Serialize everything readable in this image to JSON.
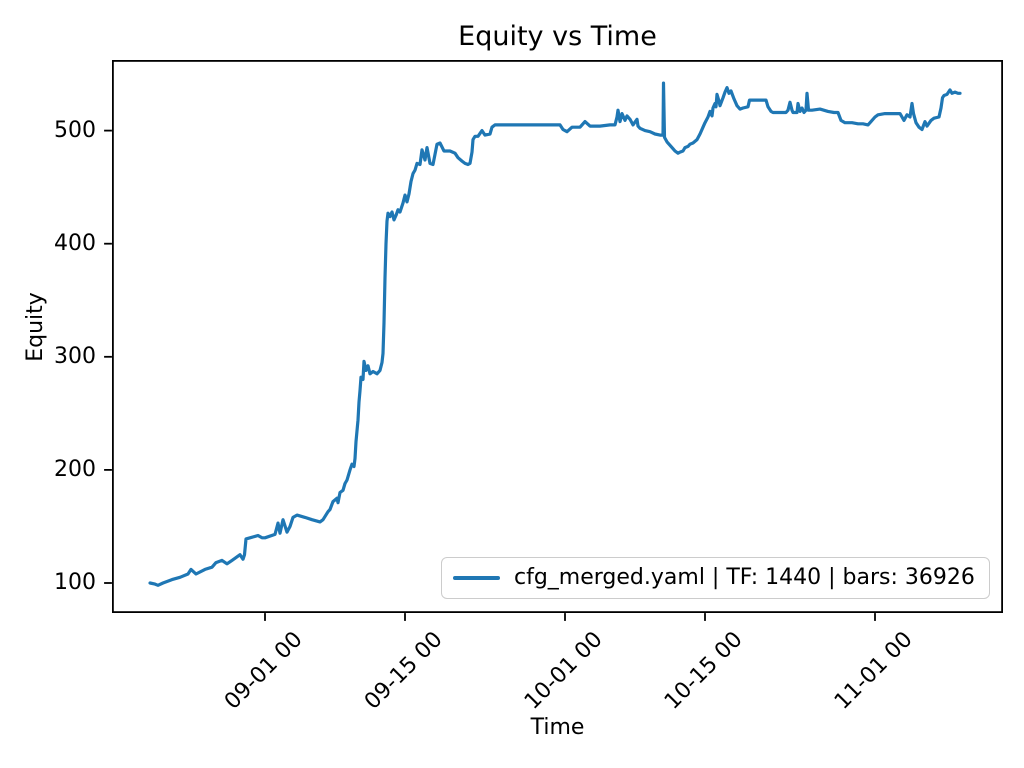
{
  "figure": {
    "title": "Equity vs Time",
    "xlabel": "Time",
    "ylabel": "Equity"
  },
  "legend": {
    "label": "cfg_merged.yaml | TF: 1440 | bars: 36926",
    "line_color": "#1f77b4"
  },
  "chart_data": {
    "type": "line",
    "title": "Equity vs Time",
    "xlabel": "Time",
    "ylabel": "Equity",
    "grid": false,
    "legend_entries": [
      "cfg_merged.yaml | TF: 1440 | bars: 36926"
    ],
    "legend_position": "lower right",
    "line_color": "#1f77b4",
    "axis_color": "#000000",
    "x_unit": "days relative to 09-01 00:00",
    "xlim": [
      -15.3,
      73.8
    ],
    "ylim": [
      74,
      563
    ],
    "yticks": [
      100,
      200,
      300,
      400,
      500
    ],
    "xticks": [
      {
        "t": 0,
        "label": "09-01 00"
      },
      {
        "t": 14,
        "label": "09-15 00"
      },
      {
        "t": 30,
        "label": "10-01 00"
      },
      {
        "t": 44,
        "label": "10-15 00"
      },
      {
        "t": 61,
        "label": "11-01 00"
      }
    ],
    "series": [
      {
        "name": "cfg_merged.yaml | TF: 1440 | bars: 36926",
        "points": [
          [
            -11.5,
            100
          ],
          [
            -11.0,
            99
          ],
          [
            -10.7,
            98
          ],
          [
            -10.2,
            100
          ],
          [
            -9.3,
            103
          ],
          [
            -8.5,
            105
          ],
          [
            -7.7,
            108
          ],
          [
            -7.4,
            112
          ],
          [
            -6.9,
            108
          ],
          [
            -6.0,
            112
          ],
          [
            -5.3,
            114
          ],
          [
            -4.9,
            118
          ],
          [
            -4.3,
            120
          ],
          [
            -3.8,
            117
          ],
          [
            -3.3,
            120
          ],
          [
            -2.5,
            125
          ],
          [
            -2.2,
            121
          ],
          [
            -2.05,
            125
          ],
          [
            -1.9,
            139
          ],
          [
            -1.5,
            140
          ],
          [
            -0.7,
            142
          ],
          [
            -0.3,
            140
          ],
          [
            0,
            140
          ],
          [
            1.0,
            143
          ],
          [
            1.3,
            153
          ],
          [
            1.5,
            144
          ],
          [
            1.8,
            156
          ],
          [
            2.2,
            145
          ],
          [
            2.5,
            150
          ],
          [
            2.8,
            158
          ],
          [
            3.2,
            160
          ],
          [
            4.0,
            158
          ],
          [
            4.7,
            156
          ],
          [
            5.5,
            154
          ],
          [
            5.8,
            156
          ],
          [
            6.3,
            163
          ],
          [
            6.5,
            165
          ],
          [
            6.8,
            172
          ],
          [
            7.2,
            175
          ],
          [
            7.3,
            171
          ],
          [
            7.5,
            180
          ],
          [
            7.8,
            182
          ],
          [
            8.0,
            188
          ],
          [
            8.2,
            191
          ],
          [
            8.5,
            200
          ],
          [
            8.7,
            205
          ],
          [
            8.9,
            203
          ],
          [
            9.0,
            210
          ],
          [
            9.1,
            225
          ],
          [
            9.3,
            244
          ],
          [
            9.4,
            260
          ],
          [
            9.5,
            270
          ],
          [
            9.6,
            282
          ],
          [
            9.8,
            280
          ],
          [
            9.9,
            296
          ],
          [
            10.1,
            288
          ],
          [
            10.3,
            292
          ],
          [
            10.5,
            285
          ],
          [
            10.8,
            287
          ],
          [
            11.2,
            285
          ],
          [
            11.5,
            288
          ],
          [
            11.7,
            295
          ],
          [
            11.8,
            303
          ],
          [
            11.9,
            330
          ],
          [
            12.0,
            370
          ],
          [
            12.1,
            400
          ],
          [
            12.2,
            420
          ],
          [
            12.3,
            427
          ],
          [
            12.5,
            424
          ],
          [
            12.7,
            428
          ],
          [
            12.9,
            421
          ],
          [
            13.1,
            425
          ],
          [
            13.3,
            430
          ],
          [
            13.5,
            428
          ],
          [
            13.8,
            436
          ],
          [
            14.0,
            443
          ],
          [
            14.2,
            437
          ],
          [
            14.4,
            444
          ],
          [
            14.6,
            455
          ],
          [
            14.8,
            462
          ],
          [
            15.0,
            465
          ],
          [
            15.2,
            471
          ],
          [
            15.5,
            470
          ],
          [
            15.7,
            483
          ],
          [
            16.0,
            474
          ],
          [
            16.2,
            485
          ],
          [
            16.5,
            471
          ],
          [
            16.8,
            470
          ],
          [
            17.2,
            488
          ],
          [
            17.5,
            489
          ],
          [
            17.9,
            482
          ],
          [
            18.5,
            482
          ],
          [
            19.0,
            480
          ],
          [
            19.3,
            476
          ],
          [
            19.7,
            473
          ],
          [
            20.0,
            471
          ],
          [
            20.3,
            470
          ],
          [
            20.5,
            471
          ],
          [
            20.7,
            481
          ],
          [
            20.8,
            492
          ],
          [
            21.0,
            495
          ],
          [
            21.3,
            495
          ],
          [
            21.7,
            500
          ],
          [
            22.0,
            496
          ],
          [
            22.5,
            497
          ],
          [
            22.7,
            503
          ],
          [
            23.0,
            505
          ],
          [
            23.5,
            505
          ],
          [
            25.0,
            505
          ],
          [
            27.0,
            505
          ],
          [
            29.5,
            505
          ],
          [
            29.8,
            501
          ],
          [
            30.2,
            499
          ],
          [
            30.7,
            503
          ],
          [
            31.5,
            503
          ],
          [
            32.0,
            508
          ],
          [
            32.5,
            504
          ],
          [
            33.5,
            504
          ],
          [
            34.5,
            505
          ],
          [
            35.0,
            505
          ],
          [
            35.2,
            512
          ],
          [
            35.3,
            518
          ],
          [
            35.5,
            508
          ],
          [
            35.7,
            515
          ],
          [
            36.0,
            509
          ],
          [
            36.2,
            513
          ],
          [
            36.5,
            510
          ],
          [
            36.8,
            505
          ],
          [
            37.2,
            510
          ],
          [
            37.3,
            504
          ],
          [
            37.5,
            502
          ],
          [
            38.0,
            500
          ],
          [
            38.5,
            499
          ],
          [
            39.0,
            497
          ],
          [
            39.5,
            496
          ],
          [
            39.8,
            496
          ],
          [
            39.85,
            542
          ],
          [
            39.95,
            494
          ],
          [
            40.2,
            490
          ],
          [
            40.5,
            487
          ],
          [
            40.8,
            484
          ],
          [
            41.0,
            482
          ],
          [
            41.3,
            480
          ],
          [
            41.5,
            481
          ],
          [
            41.8,
            482
          ],
          [
            42.0,
            485
          ],
          [
            42.3,
            486
          ],
          [
            42.5,
            488
          ],
          [
            42.8,
            489
          ],
          [
            43.2,
            492
          ],
          [
            43.5,
            497
          ],
          [
            43.8,
            503
          ],
          [
            44.0,
            507
          ],
          [
            44.3,
            512
          ],
          [
            44.5,
            517
          ],
          [
            44.7,
            513
          ],
          [
            44.8,
            520
          ],
          [
            45.0,
            524
          ],
          [
            45.1,
            521
          ],
          [
            45.2,
            532
          ],
          [
            45.4,
            526
          ],
          [
            45.5,
            522
          ],
          [
            45.8,
            529
          ],
          [
            46.0,
            534
          ],
          [
            46.2,
            538
          ],
          [
            46.4,
            533
          ],
          [
            46.6,
            535
          ],
          [
            46.9,
            528
          ],
          [
            47.2,
            522
          ],
          [
            47.5,
            519
          ],
          [
            47.8,
            520
          ],
          [
            48.3,
            521
          ],
          [
            48.45,
            527
          ],
          [
            49.0,
            527
          ],
          [
            50.1,
            527
          ],
          [
            50.3,
            521
          ],
          [
            50.6,
            517
          ],
          [
            50.8,
            516
          ],
          [
            51.5,
            516
          ],
          [
            52.1,
            516
          ],
          [
            52.3,
            518
          ],
          [
            52.5,
            525
          ],
          [
            52.7,
            518
          ],
          [
            52.8,
            516
          ],
          [
            53.2,
            516
          ],
          [
            53.3,
            524
          ],
          [
            53.5,
            517
          ],
          [
            53.7,
            520
          ],
          [
            53.9,
            516
          ],
          [
            54.1,
            518
          ],
          [
            54.2,
            533
          ],
          [
            54.35,
            518
          ],
          [
            54.7,
            518
          ],
          [
            55.5,
            519
          ],
          [
            56.3,
            517
          ],
          [
            56.9,
            516
          ],
          [
            57.3,
            516
          ],
          [
            57.6,
            509
          ],
          [
            58.0,
            507
          ],
          [
            58.7,
            507
          ],
          [
            59.3,
            506
          ],
          [
            59.8,
            506
          ],
          [
            60.3,
            505
          ],
          [
            60.6,
            508
          ],
          [
            61.0,
            512
          ],
          [
            61.3,
            514
          ],
          [
            62.0,
            515
          ],
          [
            63.0,
            515
          ],
          [
            63.5,
            515
          ],
          [
            63.7,
            512
          ],
          [
            63.9,
            509
          ],
          [
            64.2,
            514
          ],
          [
            64.5,
            512
          ],
          [
            64.7,
            524
          ],
          [
            64.85,
            515
          ],
          [
            65.1,
            507
          ],
          [
            65.4,
            503
          ],
          [
            65.7,
            501
          ],
          [
            66.0,
            508
          ],
          [
            66.2,
            504
          ],
          [
            66.6,
            509
          ],
          [
            66.9,
            511
          ],
          [
            67.4,
            512
          ],
          [
            67.6,
            520
          ],
          [
            67.75,
            529
          ],
          [
            67.9,
            531
          ],
          [
            68.2,
            532
          ],
          [
            68.5,
            536
          ],
          [
            68.7,
            533
          ],
          [
            69.0,
            534
          ],
          [
            69.3,
            533
          ],
          [
            69.5,
            533
          ]
        ]
      }
    ]
  }
}
